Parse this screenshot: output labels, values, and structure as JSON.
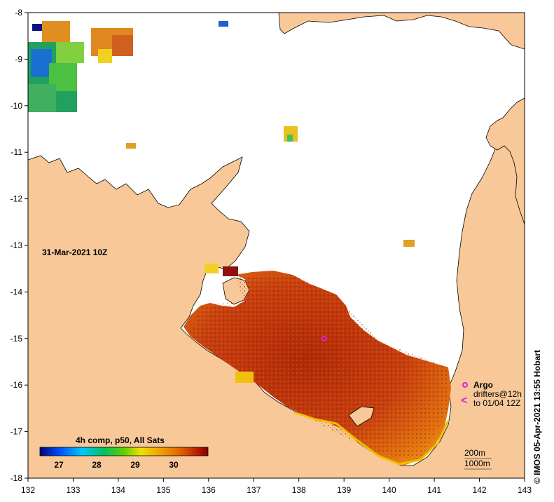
{
  "map": {
    "lon_ticks": [
      "132",
      "133",
      "134",
      "135",
      "136",
      "137",
      "138",
      "139",
      "140",
      "141",
      "142",
      "143"
    ],
    "lat_ticks": [
      "-8",
      "-9",
      "-10",
      "-11",
      "-12",
      "-13",
      "-14",
      "-15",
      "-16",
      "-17",
      "-18"
    ],
    "datetime_label": "31-Mar-2021 10Z",
    "credit": "© IMOS 05-Apr-2021 13:55 Hobart"
  },
  "colorbar": {
    "title": "4h comp, p50, All Sats",
    "ticks": [
      "27",
      "28",
      "29",
      "30"
    ],
    "colors": [
      "#000080",
      "#0050ff",
      "#00c8ff",
      "#00c060",
      "#60d000",
      "#f0e000",
      "#f0a000",
      "#e06000",
      "#c02000",
      "#800000"
    ]
  },
  "legend": {
    "argo_label": "Argo",
    "drifters_label": "drifters@12h",
    "drifters_time": "to 01/04 12Z",
    "argo_color": "#e020e0"
  },
  "scale": {
    "contour_200": "200m",
    "contour_1000": "1000m"
  },
  "colors": {
    "land": "#f8c898",
    "sea_no_data": "#ffffff"
  }
}
